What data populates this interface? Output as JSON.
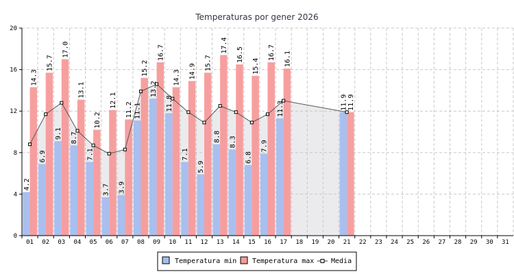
{
  "chart_data": {
    "type": "bar",
    "title": "Temperaturas por gener 2026",
    "xlabel": "",
    "ylabel": "",
    "ylim": [
      0,
      20
    ],
    "y_ticks": [
      0,
      4,
      8,
      12,
      16,
      20
    ],
    "grid": true,
    "legend_position": "bottom-center",
    "categories": [
      "01",
      "02",
      "03",
      "04",
      "05",
      "06",
      "07",
      "08",
      "09",
      "10",
      "11",
      "12",
      "13",
      "14",
      "15",
      "16",
      "17",
      "18",
      "19",
      "20",
      "21",
      "22",
      "23",
      "24",
      "25",
      "26",
      "27",
      "28",
      "29",
      "30",
      "31"
    ],
    "series": [
      {
        "name": "Temperatura min",
        "type": "bar",
        "color": "#a4bdee",
        "values": [
          4.2,
          6.9,
          9.1,
          8.7,
          7.1,
          3.7,
          3.9,
          11.1,
          13.2,
          11.8,
          7.1,
          5.9,
          8.8,
          8.3,
          6.8,
          7.9,
          11.3,
          null,
          null,
          null,
          11.9,
          null,
          null,
          null,
          null,
          null,
          null,
          null,
          null,
          null,
          null
        ]
      },
      {
        "name": "Temperatura max",
        "type": "bar",
        "color": "#f79a9a",
        "values": [
          14.3,
          15.7,
          17.0,
          13.1,
          10.2,
          12.1,
          11.2,
          15.2,
          16.7,
          14.3,
          14.9,
          15.7,
          17.4,
          16.5,
          15.4,
          16.7,
          16.1,
          null,
          null,
          null,
          11.9,
          null,
          null,
          null,
          null,
          null,
          null,
          null,
          null,
          null,
          null
        ]
      },
      {
        "name": "Media",
        "type": "line",
        "color": "#333333",
        "values": [
          8.8,
          11.7,
          12.8,
          10.1,
          8.7,
          7.9,
          8.3,
          13.9,
          14.6,
          13.2,
          11.9,
          10.9,
          12.5,
          11.9,
          10.9,
          11.7,
          13.0,
          null,
          null,
          null,
          11.9,
          null,
          null,
          null,
          null,
          null,
          null,
          null,
          null,
          null,
          null
        ]
      }
    ]
  }
}
